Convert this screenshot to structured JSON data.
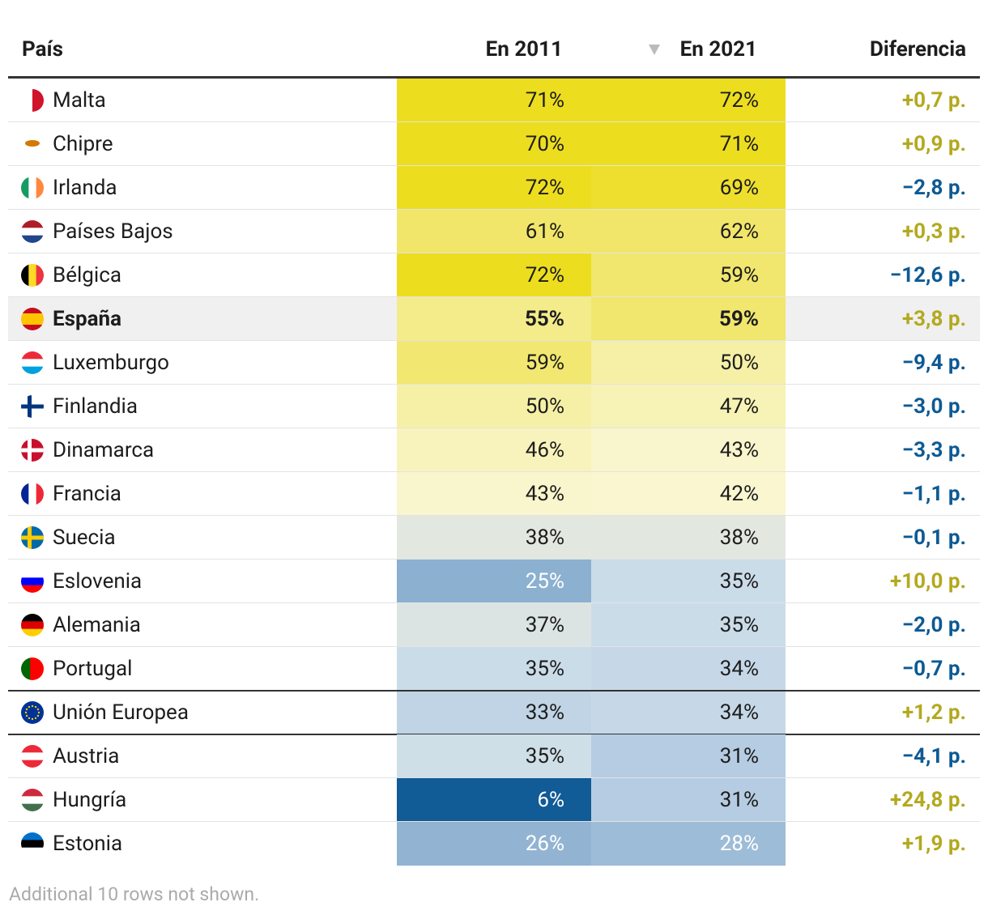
{
  "table": {
    "header": [
      "País",
      "En 2011",
      "En 2021",
      "Diferencia"
    ],
    "rows": [
      {
        "country": "Malta",
        "v2011": "71%",
        "v2021": "72%",
        "diff": "+0,7 p.",
        "c2011": "#eddd1f",
        "c2021": "#eddd1f",
        "diff_color": "#b3a91f"
      },
      {
        "country": "Chipre",
        "v2011": "70%",
        "v2021": "71%",
        "diff": "+0,9 p.",
        "c2011": "#eddd1f",
        "c2021": "#eddd1f",
        "diff_color": "#b3a91f"
      },
      {
        "country": "Irlanda",
        "v2011": "72%",
        "v2021": "69%",
        "diff": "−2,8 p.",
        "c2011": "#eddd1f",
        "c2021": "#eedf2e",
        "diff_color": "#0d5a94"
      },
      {
        "country": "Países Bajos",
        "v2011": "61%",
        "v2021": "62%",
        "diff": "+0,3 p.",
        "c2011": "#f1e66a",
        "c2021": "#f1e66a",
        "diff_color": "#b3a91f"
      },
      {
        "country": "Bélgica",
        "v2011": "72%",
        "v2021": "59%",
        "diff": "−12,6 p.",
        "c2011": "#eddd1f",
        "c2021": "#f1e66e",
        "diff_color": "#0d5a94"
      },
      {
        "country": "España",
        "v2011": "55%",
        "v2021": "59%",
        "diff": "+3,8 p.",
        "c2011": "#f4eb8b",
        "c2021": "#f1e66e",
        "diff_color": "#b3a91f",
        "highlight": true
      },
      {
        "country": "Luxemburgo",
        "v2011": "59%",
        "v2021": "50%",
        "diff": "−9,4 p.",
        "c2011": "#f2e770",
        "c2021": "#f6f0a6",
        "diff_color": "#0d5a94"
      },
      {
        "country": "Finlandia",
        "v2011": "50%",
        "v2021": "47%",
        "diff": "−3,0 p.",
        "c2011": "#f6f0a6",
        "c2021": "#f7f2b5",
        "diff_color": "#0d5a94"
      },
      {
        "country": "Dinamarca",
        "v2011": "46%",
        "v2021": "43%",
        "diff": "−3,3 p.",
        "c2011": "#f8f3bc",
        "c2021": "#f9f5cc",
        "diff_color": "#0d5a94"
      },
      {
        "country": "Francia",
        "v2011": "43%",
        "v2021": "42%",
        "diff": "−1,1 p.",
        "c2011": "#f9f5cc",
        "c2021": "#f9f6d0",
        "diff_color": "#0d5a94"
      },
      {
        "country": "Suecia",
        "v2011": "38%",
        "v2021": "38%",
        "diff": "−0,1 p.",
        "c2011": "#e2e8e0",
        "c2021": "#e2e8e0",
        "diff_color": "#0d5a94"
      },
      {
        "country": "Eslovenia",
        "v2011": "25%",
        "v2021": "35%",
        "diff": "+10,0 p.",
        "c2011": "#8bb0d0",
        "c2021": "#cbdce9",
        "diff_color": "#b3a91f"
      },
      {
        "country": "Alemania",
        "v2011": "37%",
        "v2021": "35%",
        "diff": "−2,0 p.",
        "c2011": "#dbe4e3",
        "c2021": "#cbdce9",
        "diff_color": "#0d5a94"
      },
      {
        "country": "Portugal",
        "v2011": "35%",
        "v2021": "34%",
        "diff": "−0,7 p.",
        "c2011": "#cbdce9",
        "c2021": "#c6d8e8",
        "diff_color": "#0d5a94"
      },
      {
        "country": "Unión Europea",
        "v2011": "33%",
        "v2021": "34%",
        "diff": "+1,2 p.",
        "c2011": "#c0d4e5",
        "c2021": "#c6d8e8",
        "diff_color": "#b3a91f",
        "separated": true
      },
      {
        "country": "Austria",
        "v2011": "35%",
        "v2021": "31%",
        "diff": "−4,1 p.",
        "c2011": "#cfdfe8",
        "c2021": "#b5cce2",
        "diff_color": "#0d5a94"
      },
      {
        "country": "Hungría",
        "v2011": "6%",
        "v2021": "31%",
        "diff": "+24,8 p.",
        "c2011": "#115b96",
        "c2021": "#b5cce2",
        "diff_color": "#b3a91f"
      },
      {
        "country": "Estonia",
        "v2011": "26%",
        "v2021": "28%",
        "diff": "+1,9 p.",
        "c2011": "#92b4d2",
        "c2021": "#9dbcd7",
        "diff_color": "#b3a91f"
      }
    ],
    "footer": "Additional 10 rows not shown."
  }
}
